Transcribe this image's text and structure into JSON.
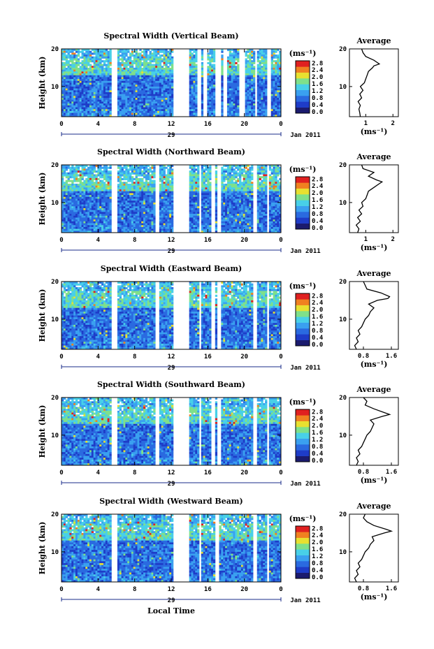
{
  "shared": {
    "x_ticks": [
      "0",
      "4",
      "8",
      "12",
      "16",
      "20",
      "0"
    ],
    "y_ticks": [
      "10",
      "20"
    ],
    "ylabel": "Height (km)",
    "day_label": "29",
    "month_label": "Jan 2011",
    "xlabel": "Local Time",
    "colorbar_unit": "(ms⁻¹)",
    "colorbar_ticks": [
      "0.0",
      "0.4",
      "0.8",
      "1.2",
      "1.6",
      "2.0",
      "2.4",
      "2.8"
    ],
    "avg_title": "Average",
    "avg_unit": "(ms⁻¹)",
    "colors": [
      "#1b1b6e",
      "#1e3cc8",
      "#2a6ae0",
      "#3aa0f0",
      "#48d0e8",
      "#7fe08a",
      "#e8e030",
      "#f08020",
      "#e02020"
    ]
  },
  "chart_data": [
    {
      "type": "heatmap",
      "title": "Spectral Width (Vertical Beam)",
      "xlabel": "",
      "ylabel": "Height (km)",
      "xlim": [
        0,
        24
      ],
      "ylim": [
        2,
        20
      ],
      "gaps_hours": [
        [
          5.4,
          6.0
        ],
        [
          12.3,
          14.0
        ],
        [
          14.8,
          15.3
        ],
        [
          15.6,
          15.9
        ],
        [
          16.8,
          17.4
        ],
        [
          17.6,
          18.2
        ],
        [
          19.4,
          20.0
        ],
        [
          21.1,
          21.4
        ],
        [
          22.4,
          23.0
        ]
      ],
      "colorbar_ticks": [
        "0.0",
        "0.4",
        "0.8",
        "1.2",
        "1.6",
        "2.0",
        "2.4",
        "2.8"
      ],
      "average": {
        "title": "Average",
        "unit": "(ms⁻¹)",
        "x_ticks": [
          "1",
          "2"
        ],
        "xlim": [
          0.4,
          2.2
        ],
        "profile": [
          [
            2,
            0.8
          ],
          [
            3,
            0.78
          ],
          [
            4,
            0.75
          ],
          [
            5,
            0.8
          ],
          [
            6,
            0.72
          ],
          [
            7,
            0.85
          ],
          [
            8,
            0.78
          ],
          [
            9,
            0.9
          ],
          [
            10,
            0.8
          ],
          [
            11,
            0.95
          ],
          [
            12,
            1.0
          ],
          [
            13,
            1.05
          ],
          [
            14,
            1.1
          ],
          [
            15,
            1.25
          ],
          [
            15.5,
            1.3
          ],
          [
            16,
            1.5
          ],
          [
            16.5,
            1.4
          ],
          [
            17,
            1.3
          ],
          [
            18,
            1.0
          ],
          [
            19,
            0.9
          ],
          [
            20,
            0.85
          ]
        ]
      }
    },
    {
      "type": "heatmap",
      "title": "Spectral Width (Northward Beam)",
      "xlabel": "",
      "ylabel": "Height (km)",
      "xlim": [
        0,
        24
      ],
      "ylim": [
        2,
        20
      ],
      "gaps_hours": [
        [
          5.4,
          6.0
        ],
        [
          10.2,
          10.6
        ],
        [
          12.3,
          14.0
        ],
        [
          15.0,
          15.3
        ],
        [
          16.3,
          16.7
        ],
        [
          17.1,
          17.4
        ],
        [
          21.0,
          21.3
        ],
        [
          22.4,
          22.7
        ]
      ],
      "colorbar_ticks": [
        "0.0",
        "0.4",
        "0.8",
        "1.2",
        "1.6",
        "2.0",
        "2.4",
        "2.8"
      ],
      "average": {
        "title": "Average",
        "unit": "(ms⁻¹)",
        "x_ticks": [
          "1",
          "2"
        ],
        "xlim": [
          0.4,
          2.2
        ],
        "profile": [
          [
            2,
            0.7
          ],
          [
            3,
            0.75
          ],
          [
            4,
            0.65
          ],
          [
            5,
            0.8
          ],
          [
            6,
            0.7
          ],
          [
            7,
            0.85
          ],
          [
            8,
            0.75
          ],
          [
            9,
            0.9
          ],
          [
            10,
            0.85
          ],
          [
            11,
            1.0
          ],
          [
            12,
            1.05
          ],
          [
            13,
            1.1
          ],
          [
            14,
            1.3
          ],
          [
            15,
            1.5
          ],
          [
            15.5,
            1.6
          ],
          [
            16,
            1.4
          ],
          [
            17,
            1.1
          ],
          [
            18,
            1.3
          ],
          [
            19,
            0.9
          ],
          [
            20,
            0.85
          ]
        ]
      }
    },
    {
      "type": "heatmap",
      "title": "Spectral Width (Eastward Beam)",
      "xlabel": "",
      "ylabel": "Height (km)",
      "xlim": [
        0,
        24
      ],
      "ylim": [
        2,
        20
      ],
      "gaps_hours": [
        [
          5.4,
          6.0
        ],
        [
          10.2,
          10.6
        ],
        [
          12.3,
          14.0
        ],
        [
          15.0,
          15.3
        ],
        [
          16.3,
          16.7
        ],
        [
          17.1,
          17.4
        ],
        [
          21.0,
          21.3
        ],
        [
          22.4,
          22.7
        ]
      ],
      "colorbar_ticks": [
        "0.0",
        "0.4",
        "0.8",
        "1.2",
        "1.6",
        "2.0",
        "2.4",
        "2.8"
      ],
      "average": {
        "title": "Average",
        "unit": "(ms⁻¹)",
        "x_ticks": [
          "0.8",
          "1.6"
        ],
        "xlim": [
          0.4,
          1.8
        ],
        "profile": [
          [
            2,
            0.6
          ],
          [
            3,
            0.55
          ],
          [
            4,
            0.65
          ],
          [
            5,
            0.6
          ],
          [
            6,
            0.7
          ],
          [
            7,
            0.65
          ],
          [
            8,
            0.75
          ],
          [
            9,
            0.8
          ],
          [
            10,
            0.85
          ],
          [
            11,
            0.95
          ],
          [
            12,
            1.0
          ],
          [
            13,
            1.1
          ],
          [
            14,
            0.95
          ],
          [
            15,
            1.2
          ],
          [
            15.5,
            1.5
          ],
          [
            16,
            1.55
          ],
          [
            17,
            1.3
          ],
          [
            18,
            0.9
          ],
          [
            19,
            0.85
          ],
          [
            20,
            0.8
          ]
        ]
      }
    },
    {
      "type": "heatmap",
      "title": "Spectral Width (Southward Beam)",
      "xlabel": "",
      "ylabel": "Height (km)",
      "xlim": [
        0,
        24
      ],
      "ylim": [
        2,
        20
      ],
      "gaps_hours": [
        [
          5.4,
          6.0
        ],
        [
          10.2,
          10.6
        ],
        [
          12.3,
          14.0
        ],
        [
          15.0,
          15.3
        ],
        [
          16.3,
          16.7
        ],
        [
          17.1,
          17.4
        ],
        [
          21.0,
          21.3
        ],
        [
          22.4,
          22.7
        ]
      ],
      "colorbar_ticks": [
        "0.0",
        "0.4",
        "0.8",
        "1.2",
        "1.6",
        "2.0",
        "2.4",
        "2.8"
      ],
      "average": {
        "title": "Average",
        "unit": "(ms⁻¹)",
        "x_ticks": [
          "0.8",
          "1.6"
        ],
        "xlim": [
          0.4,
          1.8
        ],
        "profile": [
          [
            2,
            0.6
          ],
          [
            3,
            0.65
          ],
          [
            4,
            0.6
          ],
          [
            5,
            0.7
          ],
          [
            6,
            0.65
          ],
          [
            7,
            0.75
          ],
          [
            8,
            0.8
          ],
          [
            9,
            0.85
          ],
          [
            10,
            0.9
          ],
          [
            11,
            1.0
          ],
          [
            12,
            1.05
          ],
          [
            13,
            1.1
          ],
          [
            14,
            1.0
          ],
          [
            15,
            1.35
          ],
          [
            15.5,
            1.55
          ],
          [
            16,
            1.4
          ],
          [
            17,
            1.1
          ],
          [
            18,
            0.85
          ],
          [
            19,
            0.9
          ],
          [
            20,
            0.8
          ]
        ]
      }
    },
    {
      "type": "heatmap",
      "title": "Spectral Width (Westward Beam)",
      "xlabel": "Local Time",
      "ylabel": "Height (km)",
      "xlim": [
        0,
        24
      ],
      "ylim": [
        2,
        20
      ],
      "gaps_hours": [
        [
          5.4,
          6.0
        ],
        [
          12.3,
          14.0
        ],
        [
          15.0,
          15.3
        ],
        [
          16.8,
          17.2
        ],
        [
          21.0,
          21.3
        ],
        [
          22.4,
          22.7
        ]
      ],
      "colorbar_ticks": [
        "0.0",
        "0.4",
        "0.8",
        "1.2",
        "1.6",
        "2.0",
        "2.4",
        "2.8"
      ],
      "average": {
        "title": "Average",
        "unit": "(ms⁻¹)",
        "x_ticks": [
          "0.8",
          "1.6"
        ],
        "xlim": [
          0.4,
          1.8
        ],
        "profile": [
          [
            2,
            0.6
          ],
          [
            3,
            0.55
          ],
          [
            4,
            0.65
          ],
          [
            5,
            0.6
          ],
          [
            6,
            0.7
          ],
          [
            7,
            0.65
          ],
          [
            8,
            0.75
          ],
          [
            9,
            0.8
          ],
          [
            10,
            0.85
          ],
          [
            11,
            0.95
          ],
          [
            12,
            1.0
          ],
          [
            13,
            1.1
          ],
          [
            14,
            1.05
          ],
          [
            15,
            1.4
          ],
          [
            15.5,
            1.6
          ],
          [
            16,
            1.45
          ],
          [
            17,
            1.1
          ],
          [
            18,
            0.9
          ],
          [
            19,
            0.8
          ],
          [
            20,
            0.85
          ]
        ]
      }
    }
  ]
}
